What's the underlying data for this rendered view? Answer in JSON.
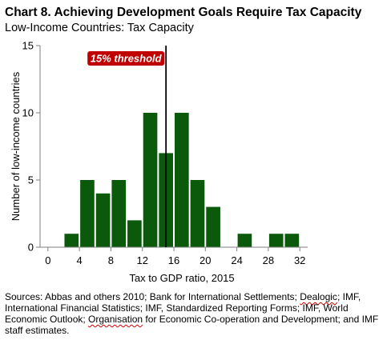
{
  "header": {
    "title": "Chart 8. Achieving Development Goals Require Tax Capacity",
    "subtitle": "Low-Income Countries: Tax Capacity"
  },
  "chart_data": {
    "type": "bar",
    "title": "Chart 8. Achieving Development Goals Require Tax Capacity",
    "subtitle": "Low-Income Countries: Tax Capacity",
    "xlabel": "Tax to GDP ratio, 2015",
    "ylabel": "Number of low-income countries",
    "categories": [
      3,
      5,
      7,
      9,
      11,
      13,
      15,
      17,
      19,
      21,
      23,
      25,
      27,
      29,
      31,
      33
    ],
    "values": [
      1,
      5,
      4,
      5,
      2,
      10,
      7,
      10,
      5,
      3,
      0,
      1,
      0,
      1,
      1,
      0
    ],
    "xlim": [
      -1,
      33
    ],
    "ylim": [
      0,
      15
    ],
    "xticks": [
      0,
      4,
      8,
      12,
      16,
      20,
      24,
      28,
      32
    ],
    "yticks": [
      0,
      5,
      10,
      15
    ],
    "bar_color": "#0b5a0b",
    "threshold": {
      "x": 15,
      "label": "15% threshold",
      "label_color": "#c00000"
    },
    "grid": false
  },
  "footer": {
    "sources_parts": [
      {
        "text": "Sources: Abbas and others 2010; Bank for International Settlements; ",
        "squiggle": false
      },
      {
        "text": "Dealogic",
        "squiggle": true
      },
      {
        "text": "; IMF, International Financial Statistics; IMF, Standardized Reporting Forms; IMF, World Economic Outlook; ",
        "squiggle": false
      },
      {
        "text": "Organisation",
        "squiggle": true
      },
      {
        "text": " for Economic Co-operation and Development; and IMF staff estimates.",
        "squiggle": false
      }
    ]
  }
}
